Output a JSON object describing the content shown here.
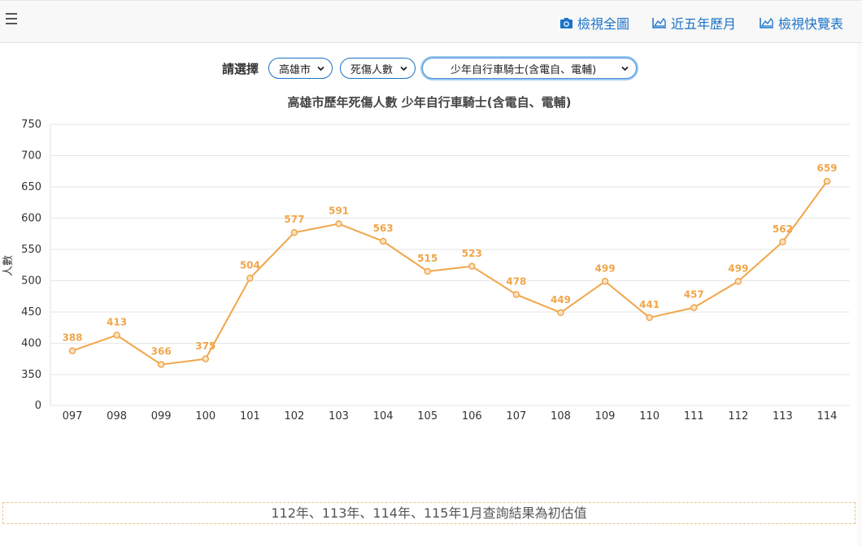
{
  "toolbar": {
    "menu_icon": "hamburger-icon",
    "links": [
      {
        "label": "檢視全圖",
        "icon": "camera-icon"
      },
      {
        "label": "近五年歷月",
        "icon": "area-chart-icon"
      },
      {
        "label": "檢視快覽表",
        "icon": "area-chart-icon"
      }
    ],
    "link_color": "#1a73c9"
  },
  "filters": {
    "label": "請選擇",
    "city": "高雄市",
    "metric": "死傷人數",
    "category": "少年自行車騎士(含電自、電輔)"
  },
  "chart_title": "高雄市歷年死傷人數 少年自行車騎士(含電自、電輔)",
  "chart_data": {
    "type": "line",
    "title": "高雄市歷年死傷人數 少年自行車騎士(含電自、電輔)",
    "xlabel": "",
    "ylabel": "人數",
    "categories": [
      "097",
      "098",
      "099",
      "100",
      "101",
      "102",
      "103",
      "104",
      "105",
      "106",
      "107",
      "108",
      "109",
      "110",
      "111",
      "112",
      "113",
      "114"
    ],
    "series": [
      {
        "values": [
          388,
          413,
          366,
          375,
          504,
          577,
          591,
          563,
          515,
          523,
          478,
          449,
          499,
          441,
          457,
          499,
          562,
          659
        ]
      }
    ],
    "y_ticks": [
      0,
      350,
      400,
      450,
      500,
      550,
      600,
      650,
      700,
      750
    ],
    "ylim": [
      0,
      750
    ],
    "axis_break": "0 to 350 compressed",
    "grid": true,
    "line_color": "#f0a64a",
    "data_labels": true
  },
  "footer_note": "112年、113年、114年、115年1月查詢結果為初估值"
}
